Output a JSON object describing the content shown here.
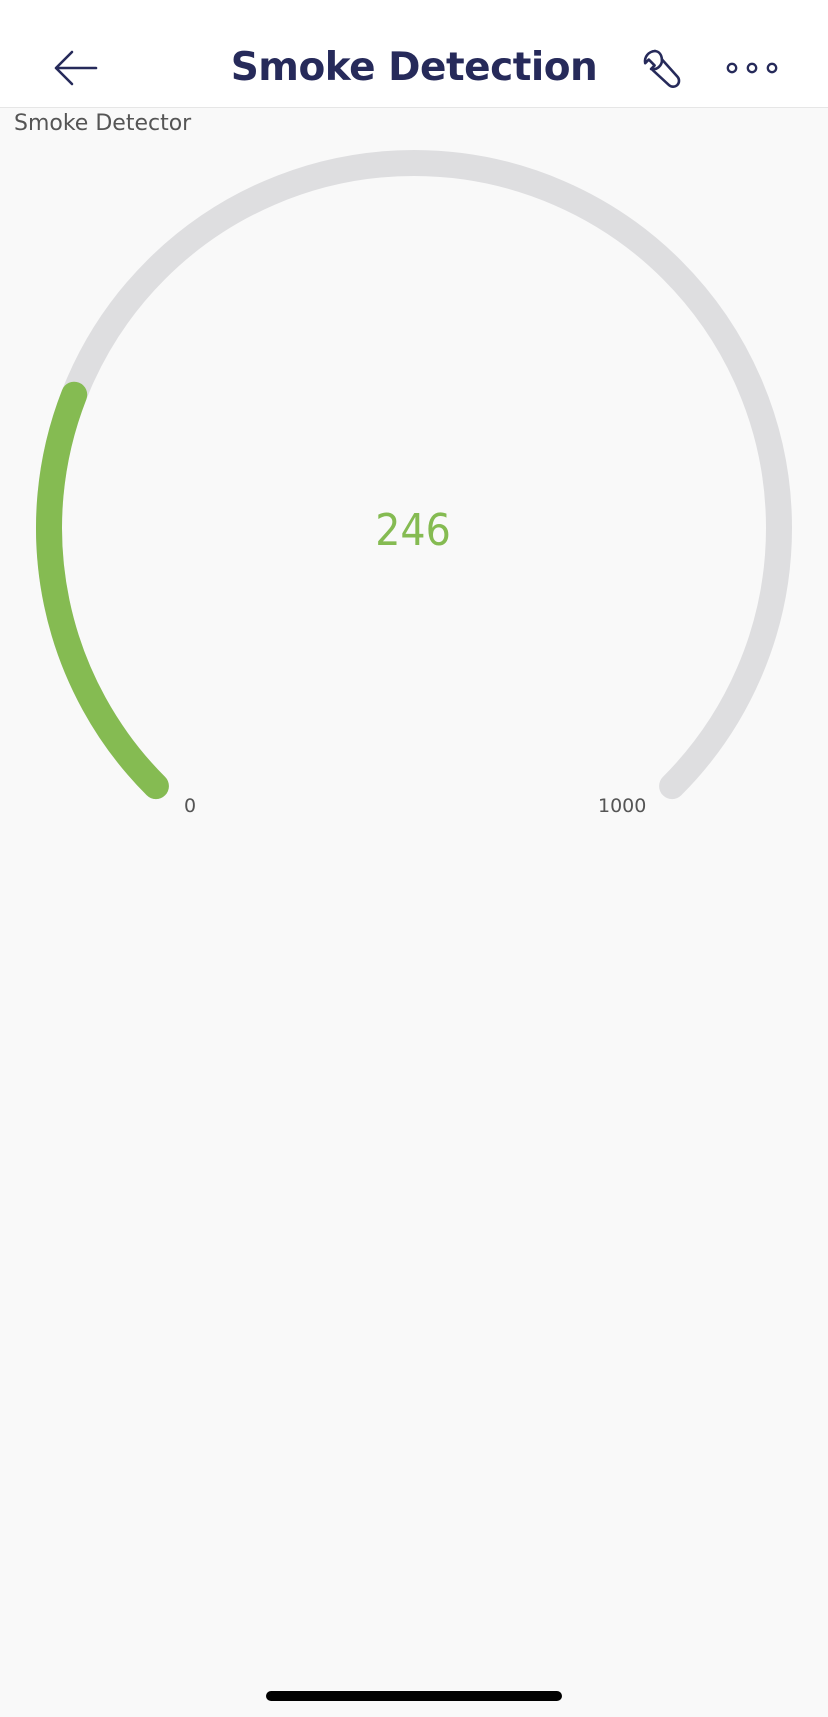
{
  "header": {
    "title": "Smoke Detection",
    "back_icon": "arrow-left-icon",
    "settings_icon": "wrench-icon",
    "more_icon": "more-horizontal-icon"
  },
  "widget": {
    "label": "Smoke Detector"
  },
  "gauge": {
    "value": 246,
    "value_text": "246",
    "min": 0,
    "max": 1000,
    "min_label": "0",
    "max_label": "1000",
    "fill_color": "#85bb52",
    "track_color": "#dedee0"
  },
  "colors": {
    "header_text": "#262a5a",
    "background": "#f9f9f9"
  }
}
